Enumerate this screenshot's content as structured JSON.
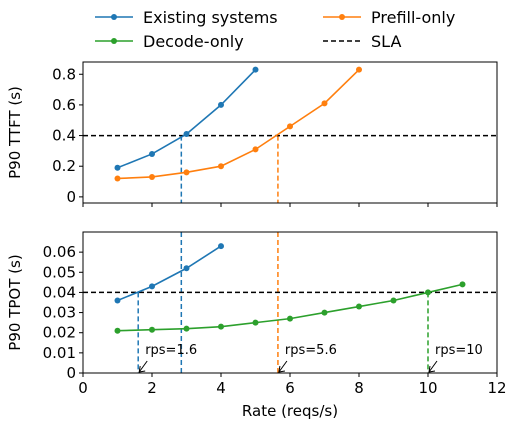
{
  "chart_data": {
    "type": "line",
    "legend": {
      "placement": "top",
      "entries": [
        {
          "label": "Existing systems",
          "color": "#1f77b4",
          "style": "line-marker"
        },
        {
          "label": "Decode-only",
          "color": "#2ca02c",
          "style": "line-marker"
        },
        {
          "label": "Prefill-only",
          "color": "#ff7f0e",
          "style": "line-marker"
        },
        {
          "label": "SLA",
          "color": "#000000",
          "style": "dashed"
        }
      ]
    },
    "xlabel": "Rate (reqs/s)",
    "xlim": [
      0,
      12
    ],
    "xticks": [
      0,
      2,
      4,
      6,
      8,
      10,
      12
    ],
    "panels": [
      {
        "ylabel": "P90 TTFT (s)",
        "ylim": [
          -0.04,
          0.88
        ],
        "yticks": [
          0.0,
          0.2,
          0.4,
          0.6,
          0.8
        ],
        "ytick_labels": [
          "0",
          "0.2",
          "0.4",
          "0.6",
          "0.8"
        ],
        "sla": 0.4,
        "series": [
          {
            "name": "Existing systems",
            "color": "#1f77b4",
            "x": [
              1,
              2,
              3,
              4,
              5
            ],
            "y": [
              0.19,
              0.28,
              0.41,
              0.6,
              0.83
            ]
          },
          {
            "name": "Prefill-only",
            "color": "#ff7f0e",
            "x": [
              1,
              2,
              3,
              4,
              5,
              6,
              7,
              8
            ],
            "y": [
              0.12,
              0.13,
              0.16,
              0.2,
              0.31,
              0.46,
              0.61,
              0.83
            ]
          }
        ],
        "vlines": [
          {
            "x": 2.85,
            "from": "sla",
            "to": "bottom",
            "color": "#1f77b4"
          },
          {
            "x": 5.65,
            "from": "sla",
            "to": "bottom",
            "color": "#ff7f0e"
          }
        ]
      },
      {
        "ylabel": "P90 TPOT (s)",
        "ylim": [
          0,
          0.07
        ],
        "yticks": [
          0,
          0.01,
          0.02,
          0.03,
          0.04,
          0.05,
          0.06
        ],
        "ytick_labels": [
          "0",
          "0.01",
          "0.02",
          "0.03",
          "0.04",
          "0.05",
          "0.06"
        ],
        "sla": 0.04,
        "series": [
          {
            "name": "Existing systems",
            "color": "#1f77b4",
            "x": [
              1,
              2,
              3,
              4
            ],
            "y": [
              0.036,
              0.043,
              0.052,
              0.063
            ]
          },
          {
            "name": "Decode-only",
            "color": "#2ca02c",
            "x": [
              1,
              2,
              3,
              4,
              5,
              6,
              7,
              8,
              9,
              10,
              11
            ],
            "y": [
              0.021,
              0.0215,
              0.022,
              0.023,
              0.025,
              0.027,
              0.03,
              0.033,
              0.036,
              0.04,
              0.044
            ]
          }
        ],
        "vlines": [
          {
            "x": 2.85,
            "from": "top",
            "to": "bottom",
            "color": "#1f77b4"
          },
          {
            "x": 5.65,
            "from": "top",
            "to": "bottom",
            "color": "#ff7f0e"
          },
          {
            "x": 1.6,
            "from": "sla",
            "to": "bottom",
            "color": "#1f77b4"
          },
          {
            "x": 10.0,
            "from": "sla",
            "to": "bottom",
            "color": "#2ca02c"
          }
        ],
        "annotations": [
          {
            "text": "rps=1.6",
            "x": 1.6,
            "color": "#1f77b4"
          },
          {
            "text": "rps=5.6",
            "x": 5.65,
            "color": "#ff7f0e"
          },
          {
            "text": "rps=10",
            "x": 10.0,
            "color": "#2ca02c"
          }
        ]
      }
    ]
  }
}
